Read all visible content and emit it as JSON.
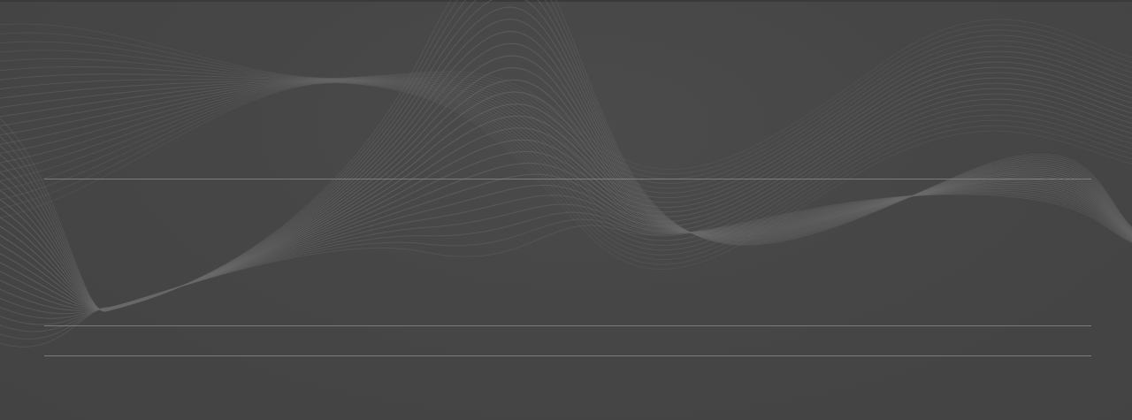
{
  "page": {
    "background_color": "#454545",
    "line_color": "#8a8a8a",
    "wave_color": "#6a6a6a"
  },
  "decor": {
    "background_pattern": "wave-lines"
  }
}
